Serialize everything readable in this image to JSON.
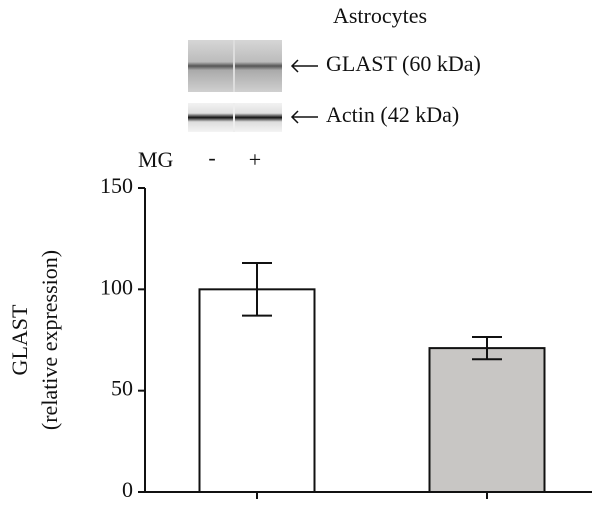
{
  "blot": {
    "title": "Astrocytes",
    "bands": [
      "GLAST (60 kDa)",
      "Actin (42 kDa)"
    ],
    "lane_label": "MG",
    "lanes": [
      "-",
      "+"
    ]
  },
  "chart_data": {
    "type": "bar",
    "y_label": [
      "GLAST",
      "(relative expression)"
    ],
    "categories": [
      null,
      null
    ],
    "values": [
      100,
      71
    ],
    "errors": [
      13,
      5.5
    ],
    "colors": [
      "#ffffff",
      "#c8c6c4"
    ],
    "ylim": [
      0,
      150
    ],
    "yticks": [
      0,
      50,
      100,
      150
    ],
    "grid": false
  }
}
